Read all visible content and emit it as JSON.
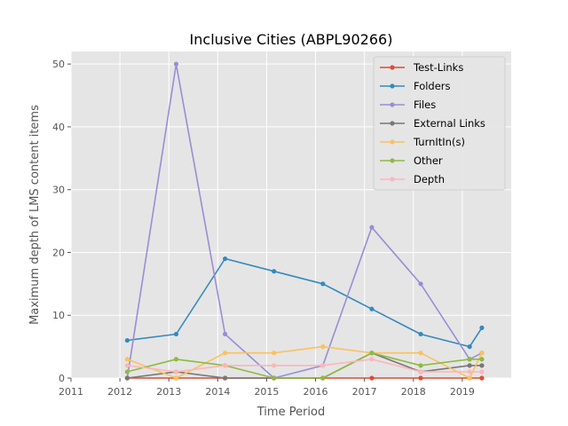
{
  "chart_data": {
    "type": "line",
    "title": "Inclusive Cities (ABPL90266)",
    "xlabel": "Time Period",
    "ylabel": "Maximum depth of LMS content items",
    "xlim": [
      2011,
      2020
    ],
    "ylim": [
      0,
      52
    ],
    "x_ticks": [
      2011,
      2012,
      2013,
      2014,
      2015,
      2016,
      2017,
      2018,
      2019
    ],
    "y_ticks": [
      0,
      10,
      20,
      30,
      40,
      50
    ],
    "x_tick_labels": [
      "2011",
      "2012",
      "2013",
      "2014",
      "2015",
      "2016",
      "2017",
      "2018",
      "2019"
    ],
    "y_tick_labels": [
      "0",
      "10",
      "20",
      "30",
      "40",
      "50"
    ],
    "x": [
      2012.15,
      2013.15,
      2014.15,
      2015.15,
      2016.15,
      2017.15,
      2018.15,
      2019.15,
      2019.4
    ],
    "grid": true,
    "legend_position": "top-right",
    "series": [
      {
        "name": "Test-Links",
        "color": "#e24a33",
        "values": [
          0,
          0,
          0,
          0,
          0,
          0,
          0,
          0,
          0
        ]
      },
      {
        "name": "Folders",
        "color": "#348abd",
        "values": [
          6,
          7,
          19,
          17,
          15,
          11,
          7,
          5,
          8
        ]
      },
      {
        "name": "Files",
        "color": "#988ed5",
        "values": [
          0,
          50,
          7,
          0,
          2,
          24,
          15,
          3,
          4
        ]
      },
      {
        "name": "External Links",
        "color": "#777777",
        "values": [
          0,
          1,
          0,
          0,
          0,
          4,
          1,
          2,
          2
        ]
      },
      {
        "name": "TurnItIn(s)",
        "color": "#fbc15e",
        "values": [
          3,
          0,
          4,
          4,
          5,
          4,
          4,
          0,
          4
        ]
      },
      {
        "name": "Other",
        "color": "#8eba42",
        "values": [
          1,
          3,
          2,
          0,
          0,
          4,
          2,
          3,
          3
        ]
      },
      {
        "name": "Depth",
        "color": "#ffb5b8",
        "values": [
          2,
          1,
          2,
          2,
          2,
          3,
          1,
          1,
          1
        ]
      }
    ]
  }
}
